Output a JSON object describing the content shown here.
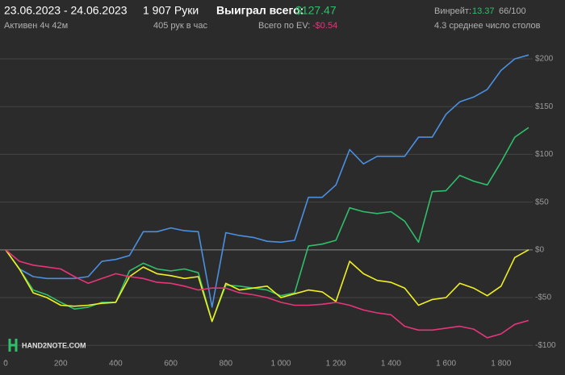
{
  "header": {
    "date_range": "23.06.2023 - 24.06.2023",
    "hands": "1 907 Руки",
    "won_label": "Выиграл всего:",
    "won_value": "$127.47",
    "winrate_label": "Винрейт:",
    "winrate_value": "13.37",
    "winrate_ci": "66/100",
    "active": "Активен 4ч 42м",
    "hands_per_hour": "405 рук в час",
    "ev_label": "Всего по EV:",
    "ev_value": "-$0.54",
    "tables": "4.3 среднее число столов"
  },
  "logo": "HAND2NOTE.COM",
  "chart_data": {
    "type": "line",
    "x": [
      0,
      50,
      100,
      150,
      200,
      250,
      300,
      350,
      400,
      450,
      500,
      550,
      600,
      650,
      700,
      750,
      800,
      850,
      900,
      950,
      1000,
      1050,
      1100,
      1150,
      1200,
      1250,
      1300,
      1350,
      1400,
      1450,
      1500,
      1550,
      1600,
      1650,
      1700,
      1750,
      1800,
      1850,
      1900
    ],
    "series": [
      {
        "color": "#4a90e2",
        "values": [
          0,
          -20,
          -28,
          -30,
          -30,
          -30,
          -28,
          -12,
          -10,
          -6,
          19,
          19,
          23,
          20,
          19,
          -60,
          18,
          15,
          13,
          9,
          8,
          10,
          55,
          55,
          68,
          105,
          90,
          98,
          98,
          98,
          118,
          118,
          142,
          155,
          160,
          168,
          188,
          200,
          204
        ]
      },
      {
        "color": "#2fbf6a",
        "values": [
          0,
          -20,
          -42,
          -47,
          -55,
          -62,
          -60,
          -55,
          -55,
          -22,
          -14,
          -20,
          -22,
          -20,
          -24,
          -75,
          -37,
          -38,
          -40,
          -42,
          -48,
          -45,
          4,
          6,
          10,
          44,
          40,
          38,
          40,
          30,
          8,
          61,
          62,
          78,
          72,
          68,
          92,
          118,
          128
        ]
      },
      {
        "color": "#f0f020",
        "values": [
          0,
          -20,
          -45,
          -50,
          -58,
          -59,
          -58,
          -56,
          -55,
          -28,
          -18,
          -25,
          -27,
          -30,
          -28,
          -75,
          -35,
          -42,
          -40,
          -38,
          -50,
          -46,
          -42,
          -44,
          -54,
          -12,
          -25,
          -32,
          -34,
          -40,
          -58,
          -52,
          -50,
          -35,
          -40,
          -48,
          -38,
          -8,
          0
        ]
      },
      {
        "color": "#e8357a",
        "values": [
          0,
          -12,
          -16,
          -18,
          -20,
          -28,
          -35,
          -30,
          -25,
          -28,
          -30,
          -34,
          -35,
          -38,
          -42,
          -40,
          -40,
          -45,
          -47,
          -50,
          -55,
          -58,
          -58,
          -57,
          -55,
          -58,
          -63,
          -66,
          -68,
          -80,
          -84,
          -84,
          -82,
          -80,
          -83,
          -92,
          -88,
          -78,
          -74
        ]
      }
    ],
    "xlim": [
      0,
      1915
    ],
    "ylim": [
      -115,
      220
    ],
    "xticks": [
      0,
      200,
      400,
      600,
      800,
      {
        "value": 1000,
        "label": "1 000"
      },
      {
        "value": 1200,
        "label": "1 200"
      },
      {
        "value": 1400,
        "label": "1 400"
      },
      {
        "value": 1600,
        "label": "1 600"
      },
      {
        "value": 1800,
        "label": "1 800"
      }
    ],
    "yticks": [
      {
        "value": 200,
        "label": "$200"
      },
      {
        "value": 150,
        "label": "$150"
      },
      {
        "value": 100,
        "label": "$100"
      },
      {
        "value": 50,
        "label": "$50"
      },
      {
        "value": 0,
        "label": "$0"
      },
      {
        "value": -50,
        "label": "-$50"
      },
      {
        "value": -100,
        "label": "-$100"
      }
    ],
    "grid": true
  }
}
